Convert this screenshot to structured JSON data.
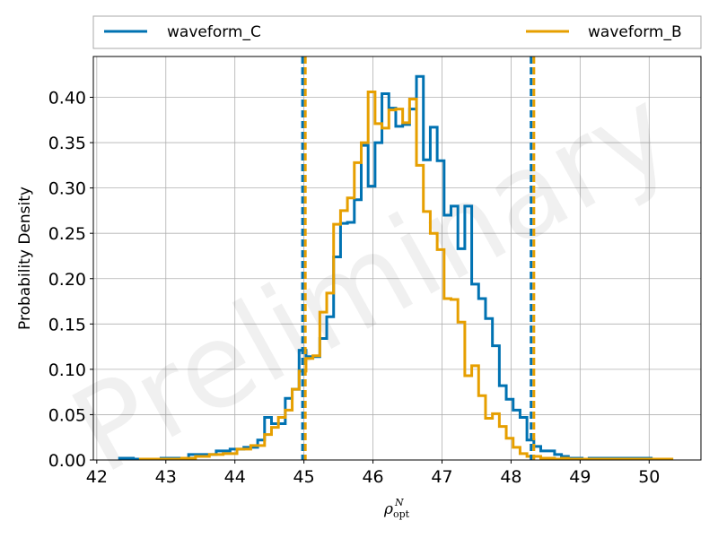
{
  "chart_data": {
    "type": "histogram",
    "xlabel_base": "ρ",
    "xlabel_sub": "opt",
    "xlabel_sup": "N",
    "ylabel": "Probability Density",
    "xlim": [
      41.95,
      50.75
    ],
    "ylim": [
      0,
      0.445
    ],
    "xticks": [
      42,
      43,
      44,
      45,
      46,
      47,
      48,
      49,
      50
    ],
    "yticks": [
      0.0,
      0.05,
      0.1,
      0.15,
      0.2,
      0.25,
      0.3,
      0.35,
      0.4
    ],
    "ytick_labels": [
      "0.00",
      "0.05",
      "0.10",
      "0.15",
      "0.20",
      "0.25",
      "0.30",
      "0.35",
      "0.40"
    ],
    "grid": true,
    "legend_position": "top-outside",
    "watermark": "Preliminary",
    "series": [
      {
        "name": "waveform_C",
        "color": "#0072B2",
        "edges": [
          42.33,
          42.53,
          42.73,
          42.93,
          43.13,
          43.33,
          43.53,
          43.73,
          43.93,
          44.13,
          44.33,
          44.43,
          44.53,
          44.63,
          44.73,
          44.83,
          44.93,
          45.03,
          45.13,
          45.23,
          45.33,
          45.43,
          45.53,
          45.63,
          45.73,
          45.83,
          45.93,
          46.03,
          46.13,
          46.23,
          46.33,
          46.43,
          46.53,
          46.63,
          46.73,
          46.83,
          46.93,
          47.03,
          47.13,
          47.23,
          47.33,
          47.43,
          47.53,
          47.63,
          47.73,
          47.83,
          47.93,
          48.03,
          48.13,
          48.23,
          48.33,
          48.43,
          48.53,
          48.63,
          48.73,
          48.83,
          48.93,
          49.03,
          49.13,
          49.33,
          49.53,
          49.73,
          50.03
        ],
        "density": [
          0.002,
          0.001,
          0.001,
          0.002,
          0.002,
          0.006,
          0.006,
          0.01,
          0.012,
          0.014,
          0.022,
          0.047,
          0.04,
          0.04,
          0.068,
          0.078,
          0.121,
          0.114,
          0.114,
          0.134,
          0.158,
          0.224,
          0.261,
          0.262,
          0.287,
          0.347,
          0.302,
          0.35,
          0.404,
          0.388,
          0.368,
          0.37,
          0.387,
          0.423,
          0.331,
          0.367,
          0.33,
          0.27,
          0.28,
          0.233,
          0.28,
          0.194,
          0.178,
          0.156,
          0.126,
          0.082,
          0.067,
          0.055,
          0.047,
          0.022,
          0.015,
          0.01,
          0.01,
          0.006,
          0.004,
          0.002,
          0.002,
          0.001,
          0.002,
          0.002,
          0.002,
          0.002
        ]
      },
      {
        "name": "waveform_B",
        "color": "#E69F00",
        "edges": [
          42.63,
          42.83,
          43.03,
          43.23,
          43.43,
          43.63,
          43.83,
          44.03,
          44.23,
          44.43,
          44.53,
          44.63,
          44.73,
          44.83,
          44.93,
          45.03,
          45.13,
          45.23,
          45.33,
          45.43,
          45.53,
          45.63,
          45.73,
          45.83,
          45.93,
          46.03,
          46.13,
          46.23,
          46.33,
          46.43,
          46.53,
          46.63,
          46.73,
          46.83,
          46.93,
          47.03,
          47.13,
          47.23,
          47.33,
          47.43,
          47.53,
          47.63,
          47.73,
          47.83,
          47.93,
          48.03,
          48.13,
          48.23,
          48.33,
          48.43,
          48.53,
          48.63,
          48.73,
          48.83,
          48.93,
          49.03,
          49.13,
          49.33,
          49.53,
          49.73,
          49.93,
          50.13,
          50.33
        ],
        "density": [
          0.001,
          0.001,
          0.001,
          0.002,
          0.004,
          0.006,
          0.007,
          0.012,
          0.016,
          0.028,
          0.036,
          0.047,
          0.055,
          0.078,
          0.098,
          0.112,
          0.115,
          0.163,
          0.184,
          0.26,
          0.275,
          0.289,
          0.328,
          0.35,
          0.406,
          0.371,
          0.366,
          0.386,
          0.387,
          0.372,
          0.398,
          0.325,
          0.274,
          0.25,
          0.232,
          0.178,
          0.177,
          0.152,
          0.093,
          0.104,
          0.071,
          0.046,
          0.051,
          0.037,
          0.024,
          0.014,
          0.007,
          0.004,
          0.004,
          0.002,
          0.002,
          0.001,
          0.002,
          0.001,
          0.001,
          0.001,
          0.001,
          0.001,
          0.001,
          0.001,
          0.001,
          0.001
        ]
      }
    ],
    "vlines": [
      {
        "series": "waveform_C",
        "x": [
          44.98,
          48.29
        ]
      },
      {
        "series": "waveform_B",
        "x": [
          45.02,
          48.33
        ]
      }
    ]
  }
}
